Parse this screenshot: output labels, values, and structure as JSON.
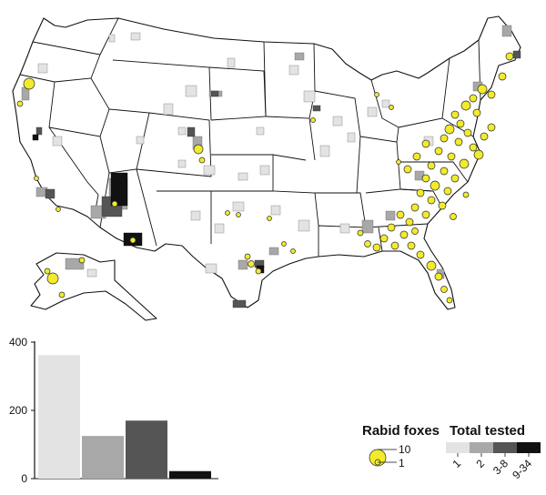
{
  "map": {
    "legend": {
      "fox_title": "Rabid foxes",
      "tested_title": "Total tested",
      "fox_sizes": [
        "10",
        "1"
      ],
      "tested_classes": [
        "1",
        "2",
        "3-8",
        "9-34"
      ],
      "tested_colors": [
        "#e3e3e3",
        "#a8a8a8",
        "#555555",
        "#111111"
      ],
      "fox_color": "#f2ea2c"
    }
  },
  "chart_data": {
    "type": "bar",
    "categories": [
      "1",
      "2",
      "3-8",
      "9-34"
    ],
    "values": [
      362,
      125,
      170,
      22
    ],
    "colors": [
      "#e3e3e3",
      "#a8a8a8",
      "#555555",
      "#111111"
    ],
    "ylim": [
      0,
      400
    ],
    "yticks": [
      0,
      200,
      400
    ]
  }
}
